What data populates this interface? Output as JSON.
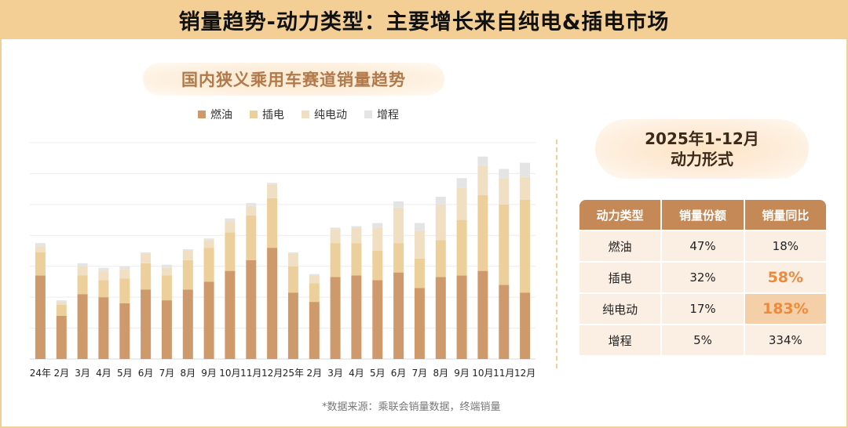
{
  "header": {
    "title": "销量趋势-动力类型：主要增长来自纯电&插电市场"
  },
  "chart_title": "国内狭义乘用车赛道销量趋势",
  "source_note": "*数据来源：乘联会销量数据，终端销量",
  "colors": {
    "fuel": "#cf9a6b",
    "phev": "#eccf9a",
    "bev": "#f1dfc3",
    "erev": "#e4e4e4",
    "header_bg": "#f3cf96",
    "table_header": "#c48957",
    "accent": "#ef8a3c"
  },
  "chart_data": {
    "type": "bar",
    "stacked": true,
    "title": "国内狭义乘用车赛道销量趋势",
    "xlabel": "",
    "ylabel": "",
    "grid": true,
    "legend_position": "top",
    "categories": [
      "24年",
      "2月",
      "3月",
      "4月",
      "5月",
      "6月",
      "7月",
      "8月",
      "9月",
      "10月",
      "11月",
      "12月",
      "25年",
      "2月",
      "3月",
      "4月",
      "5月",
      "6月",
      "7月",
      "8月",
      "9月",
      "10月",
      "11月",
      "12月"
    ],
    "ylim": [
      0,
      7
    ],
    "series": [
      {
        "name": "燃油",
        "color": "#cf9a6b",
        "values": [
          2.7,
          1.4,
          2.1,
          2.0,
          1.8,
          2.25,
          1.9,
          2.25,
          2.5,
          2.85,
          3.2,
          3.6,
          2.15,
          1.85,
          2.65,
          2.7,
          2.55,
          2.8,
          2.3,
          2.65,
          2.7,
          2.85,
          2.4,
          2.15
        ]
      },
      {
        "name": "插电",
        "color": "#eccf9a",
        "values": [
          0.75,
          0.35,
          0.6,
          0.55,
          0.8,
          0.85,
          0.8,
          0.95,
          1.1,
          1.25,
          1.45,
          1.6,
          0.85,
          0.6,
          1.1,
          1.05,
          0.95,
          0.95,
          0.95,
          1.2,
          1.8,
          2.45,
          2.6,
          3.0
        ]
      },
      {
        "name": "纯电动",
        "color": "#f1dfc3",
        "values": [
          0.2,
          0.1,
          0.3,
          0.3,
          0.3,
          0.3,
          0.25,
          0.3,
          0.25,
          0.35,
          0.3,
          0.45,
          0.4,
          0.25,
          0.45,
          0.5,
          0.75,
          1.15,
          0.9,
          1.15,
          1.05,
          0.95,
          0.85,
          0.75
        ]
      },
      {
        "name": "增程",
        "color": "#e4e4e4",
        "values": [
          0.1,
          0.05,
          0.1,
          0.1,
          0.1,
          0.05,
          0.1,
          0.05,
          0.05,
          0.1,
          0.1,
          0.05,
          0.05,
          0.05,
          0.05,
          0.05,
          0.15,
          0.2,
          0.25,
          0.25,
          0.3,
          0.3,
          0.3,
          0.45
        ]
      }
    ]
  },
  "right_panel": {
    "period": "2025年1-12月",
    "subtitle": "动力形式",
    "columns": [
      "动力类型",
      "销量份额",
      "销量同比"
    ],
    "rows": [
      {
        "type": "燃油",
        "share": "47%",
        "yoy": "18%"
      },
      {
        "type": "插电",
        "share": "32%",
        "yoy": "58%"
      },
      {
        "type": "纯电动",
        "share": "17%",
        "yoy": "183%"
      },
      {
        "type": "增程",
        "share": "5%",
        "yoy": "334%"
      }
    ]
  }
}
